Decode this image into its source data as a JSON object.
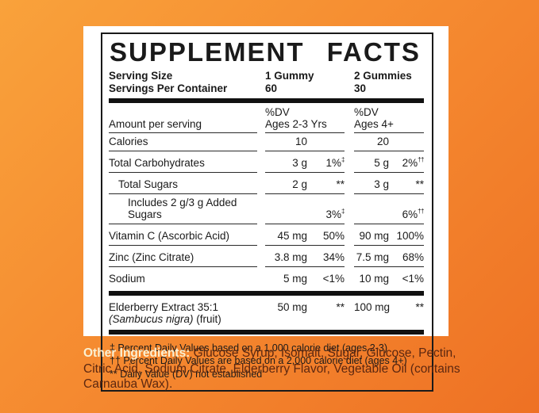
{
  "facts": {
    "title": "SUPPLEMENT FACTS",
    "serving": {
      "size_label": "Serving Size",
      "size_col1": "1 Gummy",
      "size_col2": "2 Gummies",
      "per_container_label": "Servings Per Container",
      "per_container_col1": "60",
      "per_container_col2": "30"
    },
    "header": {
      "amount_label": "Amount per serving",
      "col1_dv": "%DV",
      "col1_ages": "Ages 2-3 Yrs",
      "col2_dv": "%DV",
      "col2_ages": "Ages 4+"
    },
    "rows": [
      {
        "name": "Calories",
        "a1": "10",
        "d1": {
          "v": "",
          "s": ""
        },
        "a2": "20",
        "d2": {
          "v": "",
          "s": ""
        }
      },
      {
        "name": "Total Carbohydrates",
        "a1": "3 g",
        "d1": {
          "v": "1%",
          "s": "‡"
        },
        "a2": "5 g",
        "d2": {
          "v": "2%",
          "s": "††"
        }
      },
      {
        "name": "Total Sugars",
        "a1": "2 g",
        "d1": {
          "v": "**",
          "s": ""
        },
        "a2": "3 g",
        "d2": {
          "v": "**",
          "s": ""
        }
      },
      {
        "name": "Includes 2 g/3 g Added Sugars",
        "a1": "",
        "d1": {
          "v": "3%",
          "s": "‡"
        },
        "a2": "",
        "d2": {
          "v": "6%",
          "s": "††"
        }
      },
      {
        "name": "Vitamin C (Ascorbic Acid)",
        "a1": "45 mg",
        "d1": {
          "v": "50%",
          "s": ""
        },
        "a2": "90 mg",
        "d2": {
          "v": "100%",
          "s": ""
        }
      },
      {
        "name": "Zinc (Zinc Citrate)",
        "a1": "3.8 mg",
        "d1": {
          "v": "34%",
          "s": ""
        },
        "a2": "7.5 mg",
        "d2": {
          "v": "68%",
          "s": ""
        }
      },
      {
        "name": "Sodium",
        "a1": "5 mg",
        "d1": {
          "v": "<1%",
          "s": ""
        },
        "a2": "10 mg",
        "d2": {
          "v": "<1%",
          "s": ""
        }
      }
    ],
    "extract": {
      "name": "Elderberry Extract 35:1",
      "latin": "(Sambucus nigra)",
      "part": " (fruit)",
      "a1": "50 mg",
      "d1": "**",
      "a2": "100 mg",
      "d2": "**"
    },
    "footnotes": [
      "‡ Percent Daily Values based on a 1,000 calorie diet (ages 2-3)",
      "†† Percent Daily Values are based on a 2,000 calorie diet (ages 4+)",
      "** Daily Value (DV) not established"
    ]
  },
  "ingredients": {
    "label": "Other Ingredients:",
    "text": " Glucose Syrup, Isomalt, Sugar, Glucose, Pectin, Citric Acid, Sodium Citrate, Elderberry Flavor, Vegetable Oil (contains Carnauba Wax)."
  },
  "colors": {
    "background_gradient_start": "#f9a23b",
    "background_gradient_end": "#ee7124",
    "panel": "#ffffff",
    "ink": "#1a1a1a",
    "ingredients_label": "#faf0d2",
    "ingredients_text": "#5c2710"
  }
}
